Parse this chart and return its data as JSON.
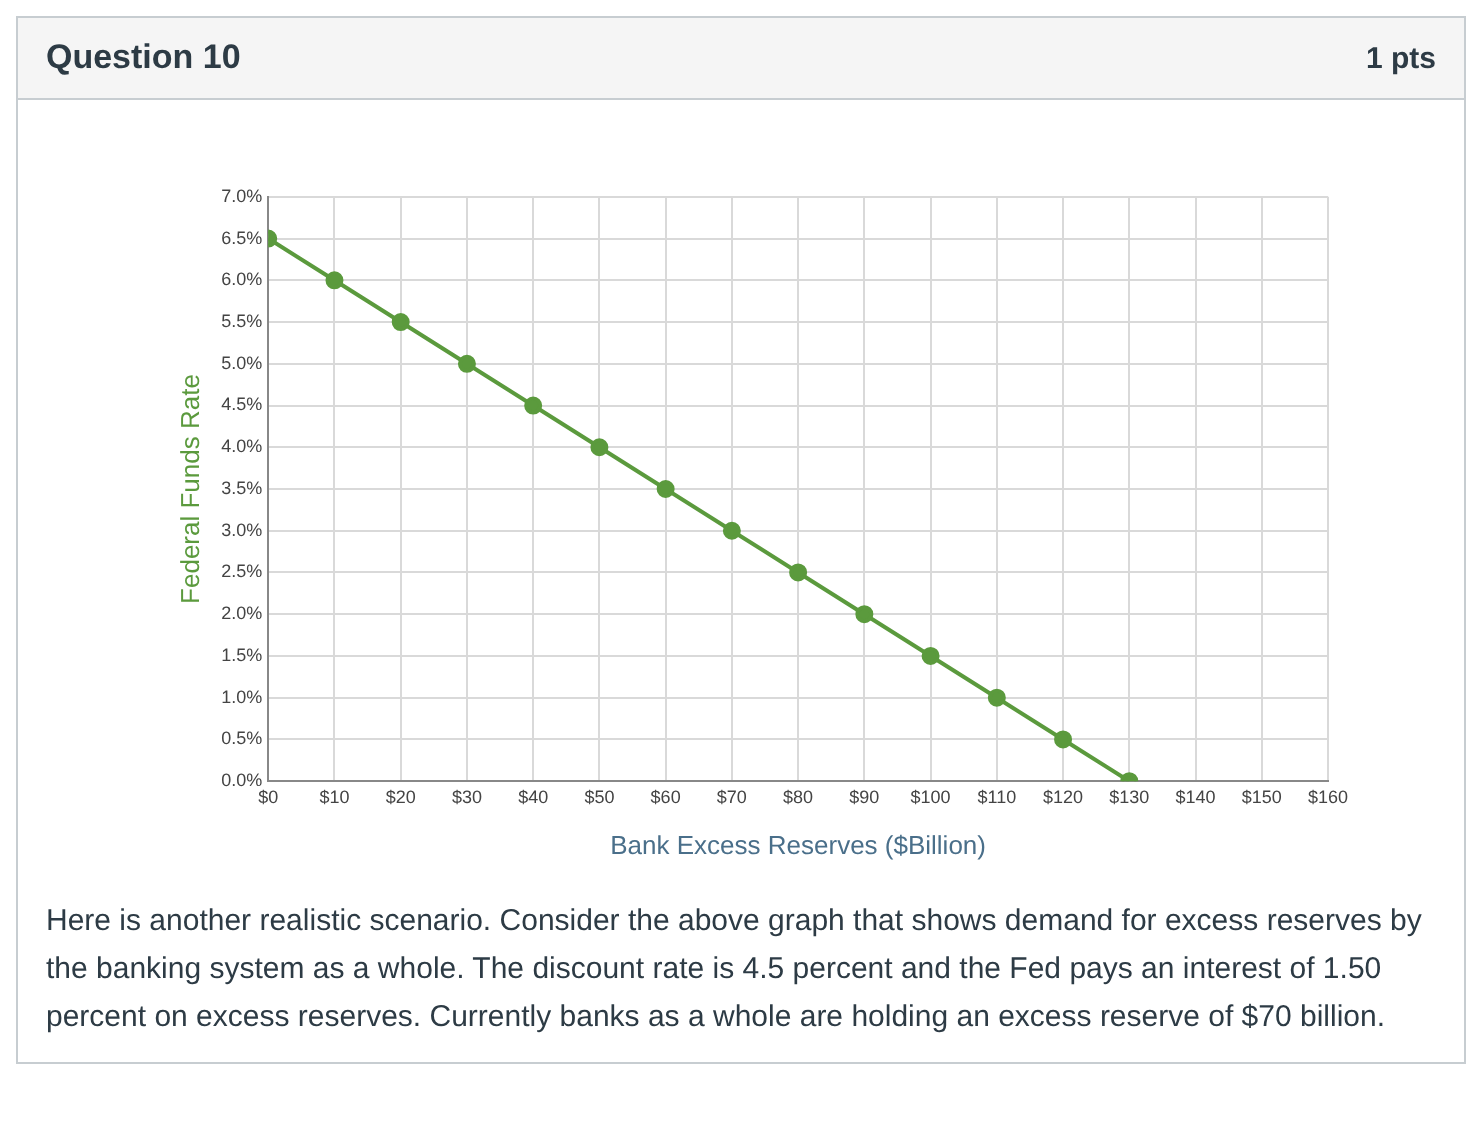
{
  "chart_data": {
    "type": "line",
    "title": "Question 10",
    "xlabel": "Bank Excess Reserves ($Billion)",
    "ylabel": "Federal Funds Rate",
    "x": [
      0,
      10,
      20,
      30,
      40,
      50,
      60,
      70,
      80,
      90,
      100,
      110,
      120,
      130
    ],
    "series": [
      {
        "color": "#5b9a3d",
        "values": [
          6.5,
          6.0,
          5.5,
          5.0,
          4.5,
          4.0,
          3.5,
          3.0,
          2.5,
          2.0,
          1.5,
          1.0,
          0.5,
          0.0
        ]
      }
    ],
    "xlim": [
      0,
      160
    ],
    "xticks": [
      {
        "value": 0,
        "label": "$0"
      },
      {
        "value": 10,
        "label": "$10"
      },
      {
        "value": 20,
        "label": "$20"
      },
      {
        "value": 30,
        "label": "$30"
      },
      {
        "value": 40,
        "label": "$40"
      },
      {
        "value": 50,
        "label": "$50"
      },
      {
        "value": 60,
        "label": "$60"
      },
      {
        "value": 70,
        "label": "$70"
      },
      {
        "value": 80,
        "label": "$80"
      },
      {
        "value": 90,
        "label": "$90"
      },
      {
        "value": 100,
        "label": "$100"
      },
      {
        "value": 110,
        "label": "$110"
      },
      {
        "value": 120,
        "label": "$120"
      },
      {
        "value": 130,
        "label": "$130"
      },
      {
        "value": 140,
        "label": "$140"
      },
      {
        "value": 150,
        "label": "$150"
      },
      {
        "value": 160,
        "label": "$160"
      }
    ],
    "ylim": [
      0,
      7
    ],
    "yticks": [
      {
        "value": 0,
        "label": "0.0%"
      },
      {
        "value": 0.5,
        "label": "0.5%"
      },
      {
        "value": 1,
        "label": "1.0%"
      },
      {
        "value": 1.5,
        "label": "1.5%"
      },
      {
        "value": 2,
        "label": "2.0%"
      },
      {
        "value": 2.5,
        "label": "2.5%"
      },
      {
        "value": 3,
        "label": "3.0%"
      },
      {
        "value": 3.5,
        "label": "3.5%"
      },
      {
        "value": 4,
        "label": "4.0%"
      },
      {
        "value": 4.5,
        "label": "4.5%"
      },
      {
        "value": 5,
        "label": "5.0%"
      },
      {
        "value": 5.5,
        "label": "5.5%"
      },
      {
        "value": 6,
        "label": "6.0%"
      },
      {
        "value": 6.5,
        "label": "6.5%"
      },
      {
        "value": 7,
        "label": "7.0%"
      }
    ],
    "grid": true,
    "marker": "circle",
    "legend": false,
    "annotations": [
      "1 pts",
      "Here is another realistic scenario. Consider the above graph that shows demand for excess reserves by the banking system as a whole. The discount rate is 4.5 percent and the Fed pays an interest of 1.50 percent on excess reserves. Currently banks as a whole are holding an excess reserve of $70 billion."
    ]
  }
}
